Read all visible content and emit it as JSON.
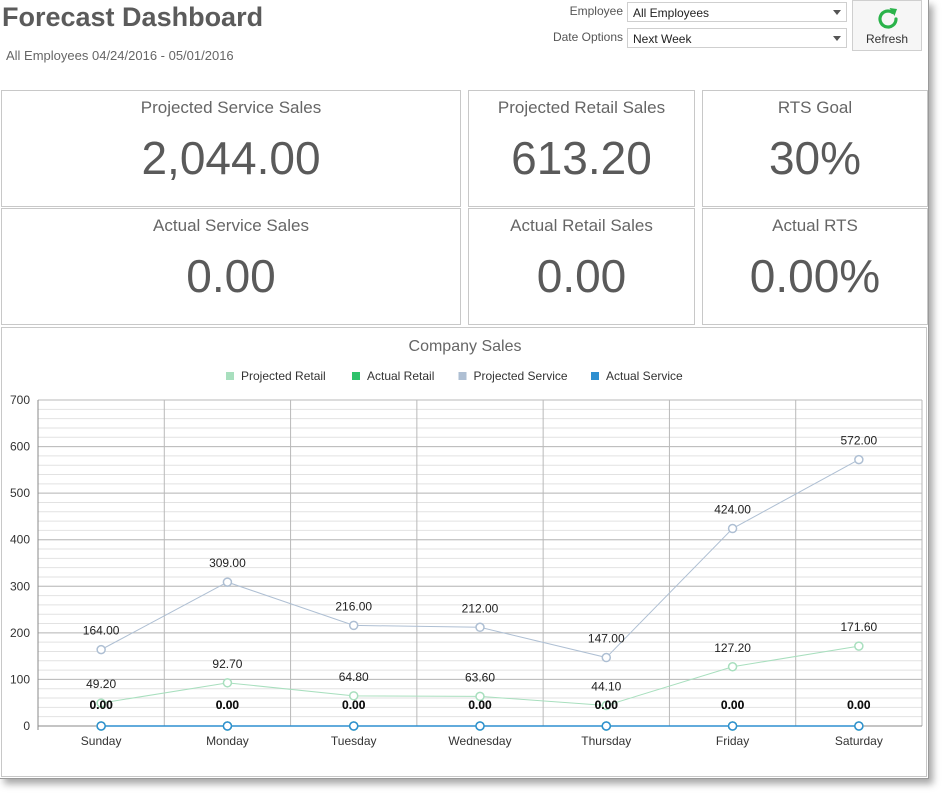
{
  "header": {
    "title": "Forecast Dashboard",
    "subtitle": "All Employees 04/24/2016 - 05/01/2016"
  },
  "filters": {
    "employee_label": "Employee",
    "employee_value": "All Employees",
    "date_label": "Date Options",
    "date_value": "Next Week",
    "refresh_label": "Refresh",
    "refresh_icon": "refresh-icon",
    "refresh_color": "#2ab34a"
  },
  "tiles": [
    {
      "label": "Projected Service Sales",
      "value": "2,044.00"
    },
    {
      "label": "Projected Retail Sales",
      "value": "613.20"
    },
    {
      "label": "RTS Goal",
      "value": "30%"
    },
    {
      "label": "Actual Service Sales",
      "value": "0.00"
    },
    {
      "label": "Actual Retail Sales",
      "value": "0.00"
    },
    {
      "label": "Actual RTS",
      "value": "0.00%"
    }
  ],
  "chart_data": {
    "type": "line",
    "title": "Company Sales",
    "categories": [
      "Sunday",
      "Monday",
      "Tuesday",
      "Wednesday",
      "Thursday",
      "Friday",
      "Saturday"
    ],
    "ylim": [
      0,
      700
    ],
    "yticks": [
      0,
      100,
      200,
      300,
      400,
      500,
      600,
      700
    ],
    "grid": true,
    "legend_position": "top-center",
    "series": [
      {
        "name": "Projected Retail",
        "color": "#a8dfbe",
        "values": [
          49.2,
          92.7,
          64.8,
          63.6,
          44.1,
          127.2,
          171.6
        ],
        "labels": [
          "49.20",
          "92.70",
          "64.80",
          "63.60",
          "44.10",
          "127.20",
          "171.60"
        ]
      },
      {
        "name": "Actual Retail",
        "color": "#2ec26b",
        "values": [
          0,
          0,
          0,
          0,
          0,
          0,
          0
        ],
        "labels": [
          "0.00",
          "0.00",
          "0.00",
          "0.00",
          "0.00",
          "0.00",
          "0.00"
        ]
      },
      {
        "name": "Projected Service",
        "color": "#aebfd3",
        "values": [
          164,
          309,
          216,
          212,
          147,
          424,
          572
        ],
        "labels": [
          "164.00",
          "309.00",
          "216.00",
          "212.00",
          "147.00",
          "424.00",
          "572.00"
        ]
      },
      {
        "name": "Actual Service",
        "color": "#2e8fd0",
        "values": [
          0,
          0,
          0,
          0,
          0,
          0,
          0
        ],
        "labels": [
          "0.00",
          "0.00",
          "0.00",
          "0.00",
          "0.00",
          "0.00",
          "0.00"
        ]
      }
    ]
  }
}
